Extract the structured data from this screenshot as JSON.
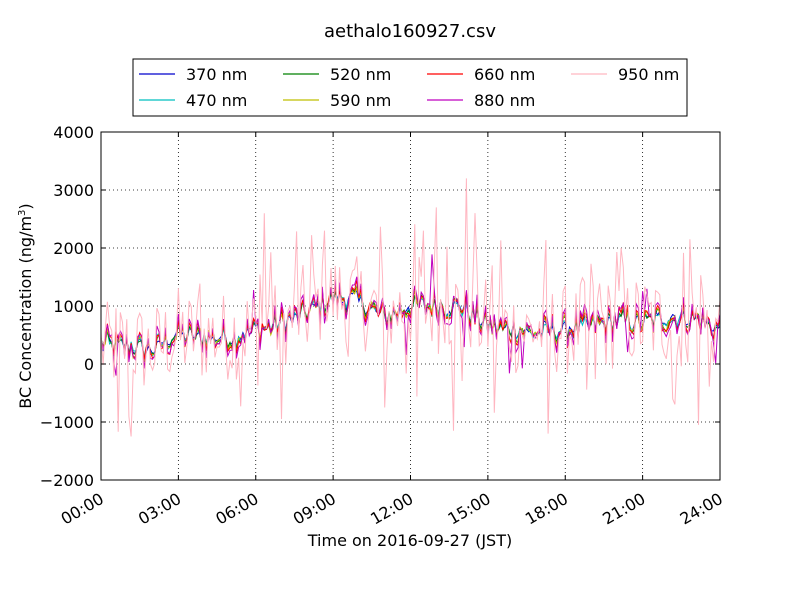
{
  "chart_data": {
    "type": "line",
    "title": "aethalo160927.csv",
    "xlabel": "Time on 2016-09-27 (JST)",
    "ylabel": "BC Concentration (ng/m",
    "ylabel_sup": "3",
    "ylabel_close": ")",
    "xlim": [
      "00:00",
      "24:00"
    ],
    "ylim": [
      -2000,
      4000
    ],
    "xticks": [
      "00:00",
      "03:00",
      "06:00",
      "09:00",
      "12:00",
      "15:00",
      "18:00",
      "21:00",
      "24:00"
    ],
    "yticks": [
      "−2000",
      "−1000",
      "0",
      "1000",
      "2000",
      "3000",
      "4000"
    ],
    "ytick_values": [
      -2000,
      -1000,
      0,
      1000,
      2000,
      3000,
      4000
    ],
    "grid": true,
    "legend_position": "top-center",
    "series": [
      {
        "name": "370 nm",
        "color": "#0000cc"
      },
      {
        "name": "470 nm",
        "color": "#00bfbf"
      },
      {
        "name": "520 nm",
        "color": "#008000"
      },
      {
        "name": "590 nm",
        "color": "#bfbf00"
      },
      {
        "name": "660 nm",
        "color": "#ff0000"
      },
      {
        "name": "880 nm",
        "color": "#bf00bf"
      },
      {
        "name": "950 nm",
        "color": "#ffb6c1"
      }
    ],
    "hourly_levels": [
      [
        "00:00",
        350
      ],
      [
        "01:00",
        300
      ],
      [
        "02:00",
        250
      ],
      [
        "03:00",
        500
      ],
      [
        "04:00",
        450
      ],
      [
        "05:00",
        450
      ],
      [
        "06:00",
        600
      ],
      [
        "07:00",
        700
      ],
      [
        "08:00",
        900
      ],
      [
        "09:00",
        1150
      ],
      [
        "10:00",
        1100
      ],
      [
        "11:00",
        800
      ],
      [
        "12:00",
        1000
      ],
      [
        "13:00",
        1000
      ],
      [
        "14:00",
        1000
      ],
      [
        "15:00",
        650
      ],
      [
        "16:00",
        600
      ],
      [
        "17:00",
        550
      ],
      [
        "18:00",
        600
      ],
      [
        "19:00",
        650
      ],
      [
        "20:00",
        750
      ],
      [
        "21:00",
        700
      ],
      [
        "22:00",
        800
      ],
      [
        "23:00",
        800
      ],
      [
        "24:00",
        600
      ]
    ],
    "peaks_950nm": [
      [
        "01:10",
        -1250
      ],
      [
        "06:20",
        2600
      ],
      [
        "07:00",
        -950
      ],
      [
        "08:40",
        2300
      ],
      [
        "11:00",
        -750
      ],
      [
        "12:30",
        2300
      ],
      [
        "13:00",
        2700
      ],
      [
        "13:40",
        -1150
      ],
      [
        "14:10",
        3200
      ],
      [
        "14:30",
        2600
      ],
      [
        "15:10",
        1700
      ],
      [
        "17:20",
        -1200
      ],
      [
        "19:00",
        1700
      ],
      [
        "20:10",
        2000
      ],
      [
        "22:50",
        2150
      ],
      [
        "23:10",
        -1050
      ]
    ]
  }
}
